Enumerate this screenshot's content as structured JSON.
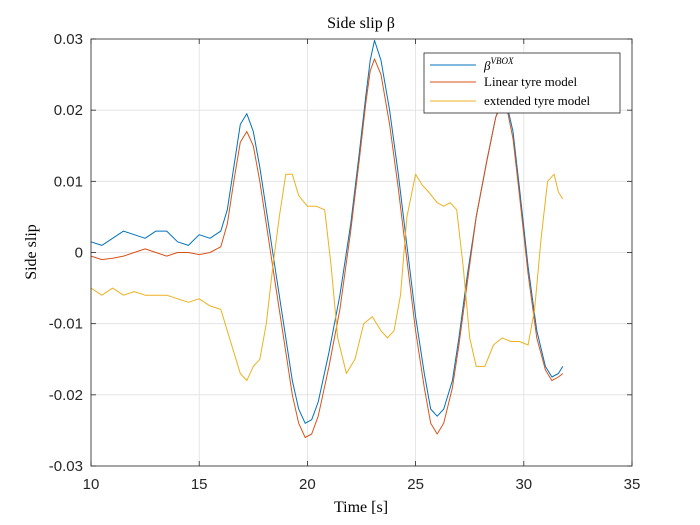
{
  "chart_data": {
    "type": "line",
    "title": "Side slip β",
    "xlabel": "Time [s]",
    "ylabel": "Side slip",
    "xlim": [
      10,
      35
    ],
    "ylim": [
      -0.03,
      0.03
    ],
    "xticks": [
      10,
      15,
      20,
      25,
      30,
      35
    ],
    "xtick_labels": [
      "10",
      "15",
      "20",
      "25",
      "30",
      "35"
    ],
    "yticks": [
      -0.03,
      -0.02,
      -0.01,
      0,
      0.01,
      0.02,
      0.03
    ],
    "ytick_labels": [
      "-0.03",
      "-0.02",
      "-0.01",
      "0",
      "0.01",
      "0.02",
      "0.03"
    ],
    "grid": true,
    "legend_position": "top-right",
    "series": [
      {
        "name": "β^VBOX",
        "legend_base": "β",
        "legend_sup": "VBOX",
        "color": "#0072BD",
        "x": [
          10,
          10.5,
          11,
          11.5,
          12,
          12.5,
          13,
          13.5,
          14,
          14.5,
          15,
          15.5,
          16,
          16.3,
          16.6,
          16.9,
          17.2,
          17.5,
          17.8,
          18.1,
          18.5,
          19,
          19.3,
          19.6,
          19.9,
          20.2,
          20.5,
          21,
          21.5,
          22,
          22.4,
          22.7,
          22.9,
          23.1,
          23.4,
          23.8,
          24.2,
          24.6,
          25,
          25.4,
          25.7,
          26,
          26.3,
          26.7,
          27,
          27.4,
          27.8,
          28.3,
          28.7,
          29,
          29.2,
          29.5,
          29.8,
          30.2,
          30.6,
          31,
          31.3,
          31.6,
          31.8
        ],
        "y": [
          0.0015,
          0.001,
          0.002,
          0.003,
          0.0025,
          0.002,
          0.003,
          0.003,
          0.0015,
          0.001,
          0.0025,
          0.002,
          0.003,
          0.006,
          0.012,
          0.018,
          0.0195,
          0.017,
          0.012,
          0.006,
          -0.002,
          -0.012,
          -0.018,
          -0.022,
          -0.024,
          -0.0235,
          -0.021,
          -0.014,
          -0.006,
          0.004,
          0.014,
          0.022,
          0.027,
          0.0298,
          0.027,
          0.02,
          0.011,
          0.001,
          -0.009,
          -0.017,
          -0.022,
          -0.023,
          -0.022,
          -0.018,
          -0.012,
          -0.003,
          0.005,
          0.013,
          0.019,
          0.0215,
          0.021,
          0.017,
          0.009,
          -0.002,
          -0.011,
          -0.016,
          -0.0175,
          -0.017,
          -0.016
        ]
      },
      {
        "name": "Linear tyre model",
        "color": "#D95319",
        "x": [
          10,
          10.5,
          11,
          11.5,
          12,
          12.5,
          13,
          13.5,
          14,
          14.5,
          15,
          15.5,
          16,
          16.3,
          16.6,
          16.9,
          17.2,
          17.5,
          17.8,
          18.1,
          18.5,
          19,
          19.3,
          19.6,
          19.9,
          20.2,
          20.5,
          21,
          21.5,
          22,
          22.4,
          22.7,
          22.9,
          23.1,
          23.4,
          23.8,
          24.2,
          24.6,
          25,
          25.4,
          25.7,
          26,
          26.3,
          26.7,
          27,
          27.4,
          27.8,
          28.3,
          28.7,
          29,
          29.2,
          29.5,
          29.8,
          30.2,
          30.6,
          31,
          31.3,
          31.6,
          31.8
        ],
        "y": [
          -0.0005,
          -0.001,
          -0.0008,
          -0.0005,
          0,
          0.0005,
          0,
          -0.0005,
          0,
          0,
          -0.0003,
          0,
          0.0008,
          0.004,
          0.01,
          0.0155,
          0.017,
          0.015,
          0.01,
          0.004,
          -0.004,
          -0.014,
          -0.02,
          -0.024,
          -0.026,
          -0.0255,
          -0.023,
          -0.016,
          -0.008,
          0.003,
          0.013,
          0.021,
          0.0255,
          0.0272,
          0.025,
          0.018,
          0.009,
          -0.001,
          -0.011,
          -0.019,
          -0.024,
          -0.0255,
          -0.024,
          -0.019,
          -0.013,
          -0.004,
          0.005,
          0.013,
          0.019,
          0.021,
          0.0205,
          0.016,
          0.008,
          -0.003,
          -0.012,
          -0.0165,
          -0.018,
          -0.0175,
          -0.017
        ]
      },
      {
        "name": "extended tyre model",
        "color": "#EDB120",
        "x": [
          10,
          10.5,
          11,
          11.5,
          12,
          12.5,
          13,
          13.5,
          14,
          14.5,
          15,
          15.5,
          16,
          16.3,
          16.6,
          16.9,
          17.2,
          17.5,
          17.8,
          18.1,
          18.4,
          18.7,
          19,
          19.3,
          19.6,
          20,
          20.4,
          20.8,
          21.1,
          21.4,
          21.8,
          22.2,
          22.6,
          23,
          23.4,
          23.7,
          24,
          24.3,
          24.6,
          25,
          25.3,
          25.6,
          26,
          26.3,
          26.6,
          26.9,
          27.2,
          27.5,
          27.8,
          28.2,
          28.6,
          29,
          29.4,
          29.8,
          30.2,
          30.5,
          30.8,
          31.1,
          31.4,
          31.6,
          31.8
        ],
        "y": [
          -0.005,
          -0.006,
          -0.005,
          -0.006,
          -0.0055,
          -0.006,
          -0.006,
          -0.006,
          -0.0065,
          -0.007,
          -0.0065,
          -0.0075,
          -0.008,
          -0.011,
          -0.014,
          -0.017,
          -0.018,
          -0.016,
          -0.015,
          -0.01,
          -0.002,
          0.005,
          0.011,
          0.011,
          0.008,
          0.0065,
          0.0065,
          0.006,
          -0.002,
          -0.012,
          -0.017,
          -0.015,
          -0.01,
          -0.009,
          -0.011,
          -0.012,
          -0.011,
          -0.006,
          0.005,
          0.011,
          0.0095,
          0.0085,
          0.007,
          0.0065,
          0.007,
          0.006,
          -0.002,
          -0.012,
          -0.016,
          -0.016,
          -0.013,
          -0.012,
          -0.0125,
          -0.0125,
          -0.013,
          -0.008,
          0.002,
          0.01,
          0.011,
          0.0085,
          0.0075
        ]
      }
    ]
  }
}
